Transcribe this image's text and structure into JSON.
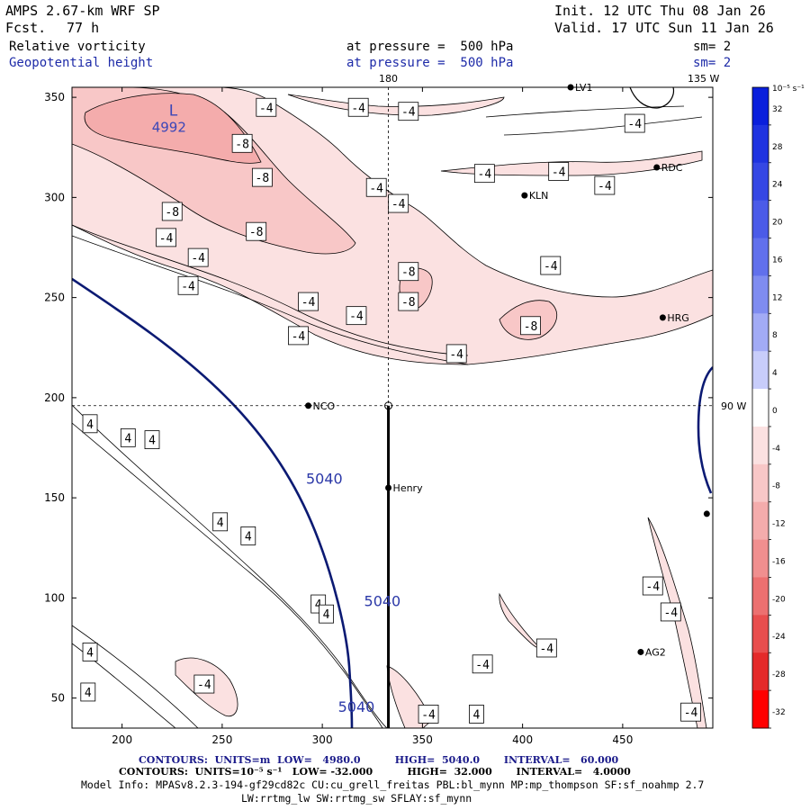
{
  "header": {
    "model": "AMPS 2.67-km WRF SP",
    "fcst_label": "Fcst.",
    "fcst_value": "77 h",
    "init": "Init. 12 UTC Thu 08 Jan 26",
    "valid": "Valid. 17 UTC Sun 11 Jan 26",
    "field1": "Relative vorticity",
    "field2": "Geopotential height",
    "level1": "at pressure =  500 hPa",
    "level2": "at pressure =  500 hPa",
    "sm1": "sm= 2",
    "sm2": "sm= 2"
  },
  "map_labels": {
    "lon_top_180": "180",
    "lon_top_135": "135 W",
    "lon_right_90": "90 W"
  },
  "footer": {
    "contours1": "CONTOURS:  UNITS=m  LOW=   4980.0          HIGH=  5040.0       INTERVAL=   60.000",
    "contours2": "CONTOURS:  UNITS=10⁻⁵ s⁻¹   LOW= -32.000          HIGH=  32.000       INTERVAL=   4.0000",
    "info1": "Model Info: MPASv8.2.3-194-gf29cd82c CU:cu_grell_freitas PBL:bl_mynn MP:mp_thompson SF:sf_noahmp 2.7",
    "info2": "LW:rrtmg_lw SW:rrtmg_sw SFLAY:sf_mynn"
  },
  "colorbar": {
    "unit_label": "10⁻⁵ s⁻¹",
    "ticks": [
      32,
      28,
      24,
      20,
      16,
      12,
      8,
      4,
      0,
      -4,
      -8,
      -12,
      -16,
      -20,
      -24,
      -28,
      -32
    ],
    "colors_top_to_bottom": [
      "#0a1fdc",
      "#1f33e0",
      "#3547e4",
      "#4b5be8",
      "#6170ec",
      "#7f8cf0",
      "#a2abf5",
      "#c8cdfa",
      "#ffffff",
      "#fbe1e1",
      "#f8c7c7",
      "#f4acac",
      "#f08f8f",
      "#ec7070",
      "#e84e4e",
      "#e42a2a",
      "#ff0000"
    ]
  },
  "chart_data": {
    "type": "contour",
    "xlim": [
      175,
      495
    ],
    "ylim": [
      35,
      355
    ],
    "x_ticks": [
      200,
      250,
      300,
      350,
      400,
      450
    ],
    "y_ticks": [
      50,
      100,
      150,
      200,
      250,
      300,
      350
    ],
    "crosshair": {
      "x": 333,
      "y": 196
    },
    "vertical_section_line": {
      "x": 333,
      "y_from": 35,
      "y_to": 196
    },
    "low_center": {
      "label": "L",
      "value": "4992",
      "x": 227,
      "y": 339
    },
    "height_contour_labels": [
      {
        "text": "5040",
        "x": 301,
        "y": 157
      },
      {
        "text": "5040",
        "x": 330,
        "y": 96
      },
      {
        "text": "5040",
        "x": 317,
        "y": 43
      }
    ],
    "vorticity_labels": [
      {
        "text": "-4",
        "x": 272,
        "y": 345
      },
      {
        "text": "-4",
        "x": 318,
        "y": 345
      },
      {
        "text": "-4",
        "x": 343,
        "y": 343
      },
      {
        "text": "-4",
        "x": 456,
        "y": 337
      },
      {
        "text": "-8",
        "x": 260,
        "y": 327
      },
      {
        "text": "-8",
        "x": 270,
        "y": 310
      },
      {
        "text": "-4",
        "x": 327,
        "y": 305
      },
      {
        "text": "-4",
        "x": 418,
        "y": 313
      },
      {
        "text": "-4",
        "x": 381,
        "y": 312
      },
      {
        "text": "-4",
        "x": 441,
        "y": 306
      },
      {
        "text": "-4",
        "x": 338,
        "y": 297
      },
      {
        "text": "-8",
        "x": 225,
        "y": 293
      },
      {
        "text": "-8",
        "x": 267,
        "y": 283
      },
      {
        "text": "-4",
        "x": 222,
        "y": 280
      },
      {
        "text": "-4",
        "x": 238,
        "y": 270
      },
      {
        "text": "-8",
        "x": 343,
        "y": 263
      },
      {
        "text": "-4",
        "x": 414,
        "y": 266
      },
      {
        "text": "-4",
        "x": 233,
        "y": 256
      },
      {
        "text": "-8",
        "x": 343,
        "y": 248
      },
      {
        "text": "-4",
        "x": 293,
        "y": 248
      },
      {
        "text": "-4",
        "x": 317,
        "y": 241
      },
      {
        "text": "-8",
        "x": 404,
        "y": 236
      },
      {
        "text": "-4",
        "x": 288,
        "y": 231
      },
      {
        "text": "-4",
        "x": 367,
        "y": 222
      },
      {
        "text": "4",
        "x": 184,
        "y": 187
      },
      {
        "text": "4",
        "x": 203,
        "y": 180
      },
      {
        "text": "4",
        "x": 215,
        "y": 179
      },
      {
        "text": "4",
        "x": 249,
        "y": 138
      },
      {
        "text": "4",
        "x": 263,
        "y": 131
      },
      {
        "text": "4",
        "x": 298,
        "y": 97
      },
      {
        "text": "4",
        "x": 302,
        "y": 92
      },
      {
        "text": "-4",
        "x": 465,
        "y": 106
      },
      {
        "text": "-4",
        "x": 474,
        "y": 93
      },
      {
        "text": "-4",
        "x": 412,
        "y": 75
      },
      {
        "text": "-4",
        "x": 380,
        "y": 67
      },
      {
        "text": "-4",
        "x": 241,
        "y": 57
      },
      {
        "text": "4",
        "x": 184,
        "y": 73
      },
      {
        "text": "4",
        "x": 183,
        "y": 53
      },
      {
        "text": "-4",
        "x": 353,
        "y": 42
      },
      {
        "text": "4",
        "x": 377,
        "y": 42
      },
      {
        "text": "-4",
        "x": 484,
        "y": 43
      }
    ],
    "stations": [
      {
        "name": "LV1",
        "x": 424,
        "y": 355
      },
      {
        "name": "RDC",
        "x": 467,
        "y": 315
      },
      {
        "name": "KLN",
        "x": 401,
        "y": 301
      },
      {
        "name": "HRG",
        "x": 470,
        "y": 240
      },
      {
        "name": "NCO",
        "x": 293,
        "y": 196
      },
      {
        "name": "Henry",
        "x": 333,
        "y": 155
      },
      {
        "name": "AG2",
        "x": 459,
        "y": 73
      },
      {
        "name": "",
        "x": 492,
        "y": 142
      }
    ]
  }
}
